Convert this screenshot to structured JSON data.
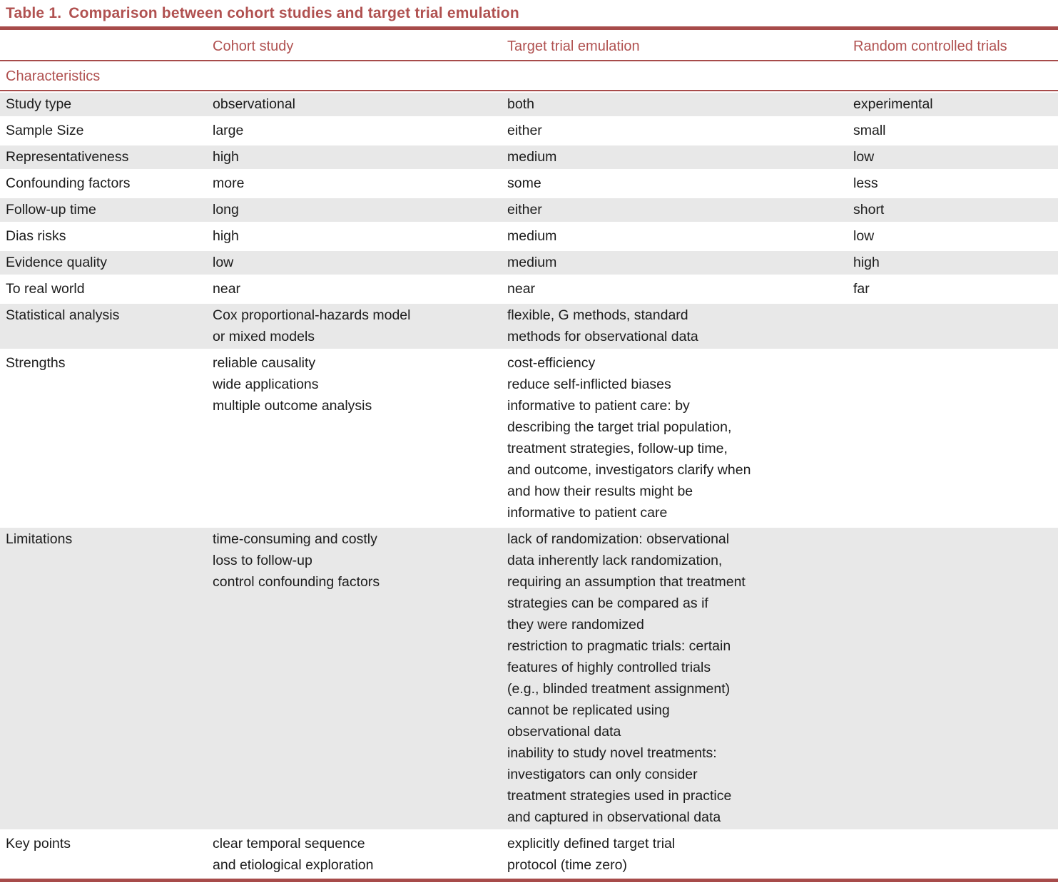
{
  "title": {
    "label": "Table 1.",
    "text": "Comparison between cohort studies and target trial emulation"
  },
  "columns": {
    "col1": "",
    "col2": "Cohort study",
    "col3": "Target trial emulation",
    "col4": "Random controlled trials"
  },
  "section": "Characteristics",
  "rows": [
    {
      "label": "Study type",
      "cohort": "observational",
      "tte": "both",
      "rct": "experimental"
    },
    {
      "label": "Sample Size",
      "cohort": "large",
      "tte": "either",
      "rct": "small"
    },
    {
      "label": "Representativeness",
      "cohort": "high",
      "tte": "medium",
      "rct": "low"
    },
    {
      "label": "Confounding factors",
      "cohort": "more",
      "tte": "some",
      "rct": "less"
    },
    {
      "label": "Follow-up time",
      "cohort": "long",
      "tte": "either",
      "rct": "short"
    },
    {
      "label": "Dias risks",
      "cohort": "high",
      "tte": "medium",
      "rct": "low"
    },
    {
      "label": "Evidence quality",
      "cohort": "low",
      "tte": "medium",
      "rct": "high"
    },
    {
      "label": "To real world",
      "cohort": "near",
      "tte": "near",
      "rct": "far"
    },
    {
      "label": "Statistical analysis",
      "cohort": "Cox proportional-hazards model\nor mixed models",
      "tte": "flexible, G methods, standard\nmethods for observational data",
      "rct": ""
    },
    {
      "label": "Strengths",
      "cohort": "reliable causality\nwide applications\nmultiple outcome analysis",
      "tte": "cost-efficiency\nreduce self-inflicted biases\ninformative to patient care: by\ndescribing the target trial population,\ntreatment strategies, follow-up time,\nand outcome, investigators clarify when\nand how their results might be\ninformative to patient care",
      "rct": ""
    },
    {
      "label": "Limitations",
      "cohort": "time-consuming and costly\nloss to follow-up\ncontrol confounding factors",
      "tte": "lack of randomization: observational\ndata inherently lack randomization,\nrequiring an assumption that treatment\nstrategies can be compared as if\nthey were randomized\nrestriction to pragmatic trials: certain\nfeatures of highly controlled trials\n(e.g., blinded treatment assignment)\ncannot be replicated using\nobservational data\ninability to study novel treatments:\ninvestigators can only consider\ntreatment strategies used in practice\nand captured in observational data",
      "rct": ""
    },
    {
      "label": "Key points",
      "cohort": "clear temporal sequence\nand etiological exploration",
      "tte": "explicitly defined target trial\nprotocol (time zero)",
      "rct": ""
    }
  ],
  "colors": {
    "accent_red_text": "#b05150",
    "rule_red": "#a74b4a",
    "row_gray": "#e8e8e8",
    "body_text": "#1c1c1c"
  }
}
